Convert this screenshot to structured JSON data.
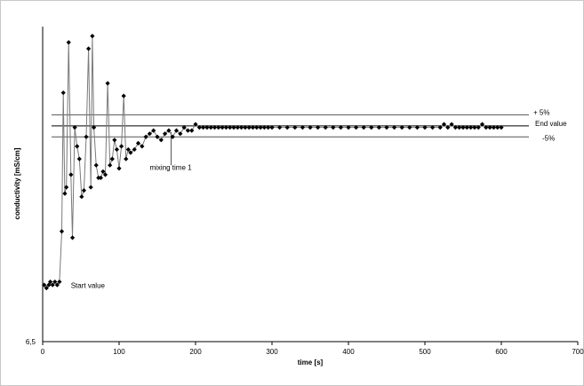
{
  "chart_data": {
    "type": "scatter",
    "xlabel": "time [s]",
    "ylabel": "conductivity [mS/cm]",
    "xlim": [
      0,
      700
    ],
    "x_ticks": [
      "0",
      "100",
      "200",
      "300",
      "400",
      "500",
      "600",
      "700"
    ],
    "ylim": [
      0,
      1
    ],
    "y_tick_label": "6,5",
    "grid": false,
    "legend": "none",
    "reference_lines": [
      {
        "label": "+ 5%",
        "value": 0.72
      },
      {
        "label": "End value",
        "value": 0.685
      },
      {
        "label": "-5%",
        "value": 0.65
      }
    ],
    "annotations": [
      {
        "text": "mixing time 1",
        "x": 168
      },
      {
        "text": "Start value",
        "x": 2
      }
    ],
    "series": [
      {
        "x": [
          2,
          5,
          8,
          10,
          13,
          16,
          19,
          22,
          25,
          27,
          29,
          31,
          34,
          37,
          39,
          42,
          45,
          48,
          51,
          54,
          57,
          60,
          63,
          65,
          67,
          70,
          73,
          76,
          79,
          82,
          85,
          88,
          91,
          94,
          97,
          100,
          103,
          106,
          109,
          112,
          115,
          120,
          125,
          130,
          135,
          140,
          145,
          150,
          155,
          160,
          165,
          170,
          175,
          180,
          185,
          190,
          195,
          200,
          205,
          210,
          215,
          220,
          225,
          230,
          235,
          240,
          245,
          250,
          255,
          260,
          265,
          270,
          275,
          280,
          285,
          290,
          295,
          300,
          310,
          320,
          330,
          340,
          350,
          360,
          370,
          380,
          390,
          400,
          410,
          420,
          430,
          440,
          450,
          460,
          470,
          480,
          490,
          500,
          510,
          520,
          525,
          530,
          535,
          540,
          545,
          550,
          555,
          560,
          565,
          570,
          575,
          580,
          585,
          590,
          595,
          600
        ],
        "y": [
          0.18,
          0.17,
          0.18,
          0.19,
          0.18,
          0.19,
          0.18,
          0.19,
          0.35,
          0.79,
          0.47,
          0.49,
          0.95,
          0.53,
          0.33,
          0.68,
          0.62,
          0.58,
          0.46,
          0.48,
          0.65,
          0.93,
          0.49,
          0.97,
          0.68,
          0.56,
          0.52,
          0.52,
          0.54,
          0.53,
          0.82,
          0.56,
          0.58,
          0.64,
          0.61,
          0.55,
          0.62,
          0.78,
          0.58,
          0.61,
          0.6,
          0.61,
          0.63,
          0.62,
          0.65,
          0.66,
          0.67,
          0.65,
          0.64,
          0.66,
          0.67,
          0.65,
          0.67,
          0.66,
          0.68,
          0.67,
          0.67,
          0.69,
          0.68,
          0.68,
          0.68,
          0.68,
          0.68,
          0.68,
          0.68,
          0.68,
          0.68,
          0.68,
          0.68,
          0.68,
          0.68,
          0.68,
          0.68,
          0.68,
          0.68,
          0.68,
          0.68,
          0.68,
          0.68,
          0.68,
          0.68,
          0.68,
          0.68,
          0.68,
          0.68,
          0.68,
          0.68,
          0.68,
          0.68,
          0.68,
          0.68,
          0.68,
          0.68,
          0.68,
          0.68,
          0.68,
          0.68,
          0.68,
          0.68,
          0.68,
          0.69,
          0.68,
          0.69,
          0.68,
          0.68,
          0.68,
          0.68,
          0.68,
          0.68,
          0.68,
          0.69,
          0.68,
          0.68,
          0.68,
          0.68,
          0.68
        ]
      }
    ]
  }
}
